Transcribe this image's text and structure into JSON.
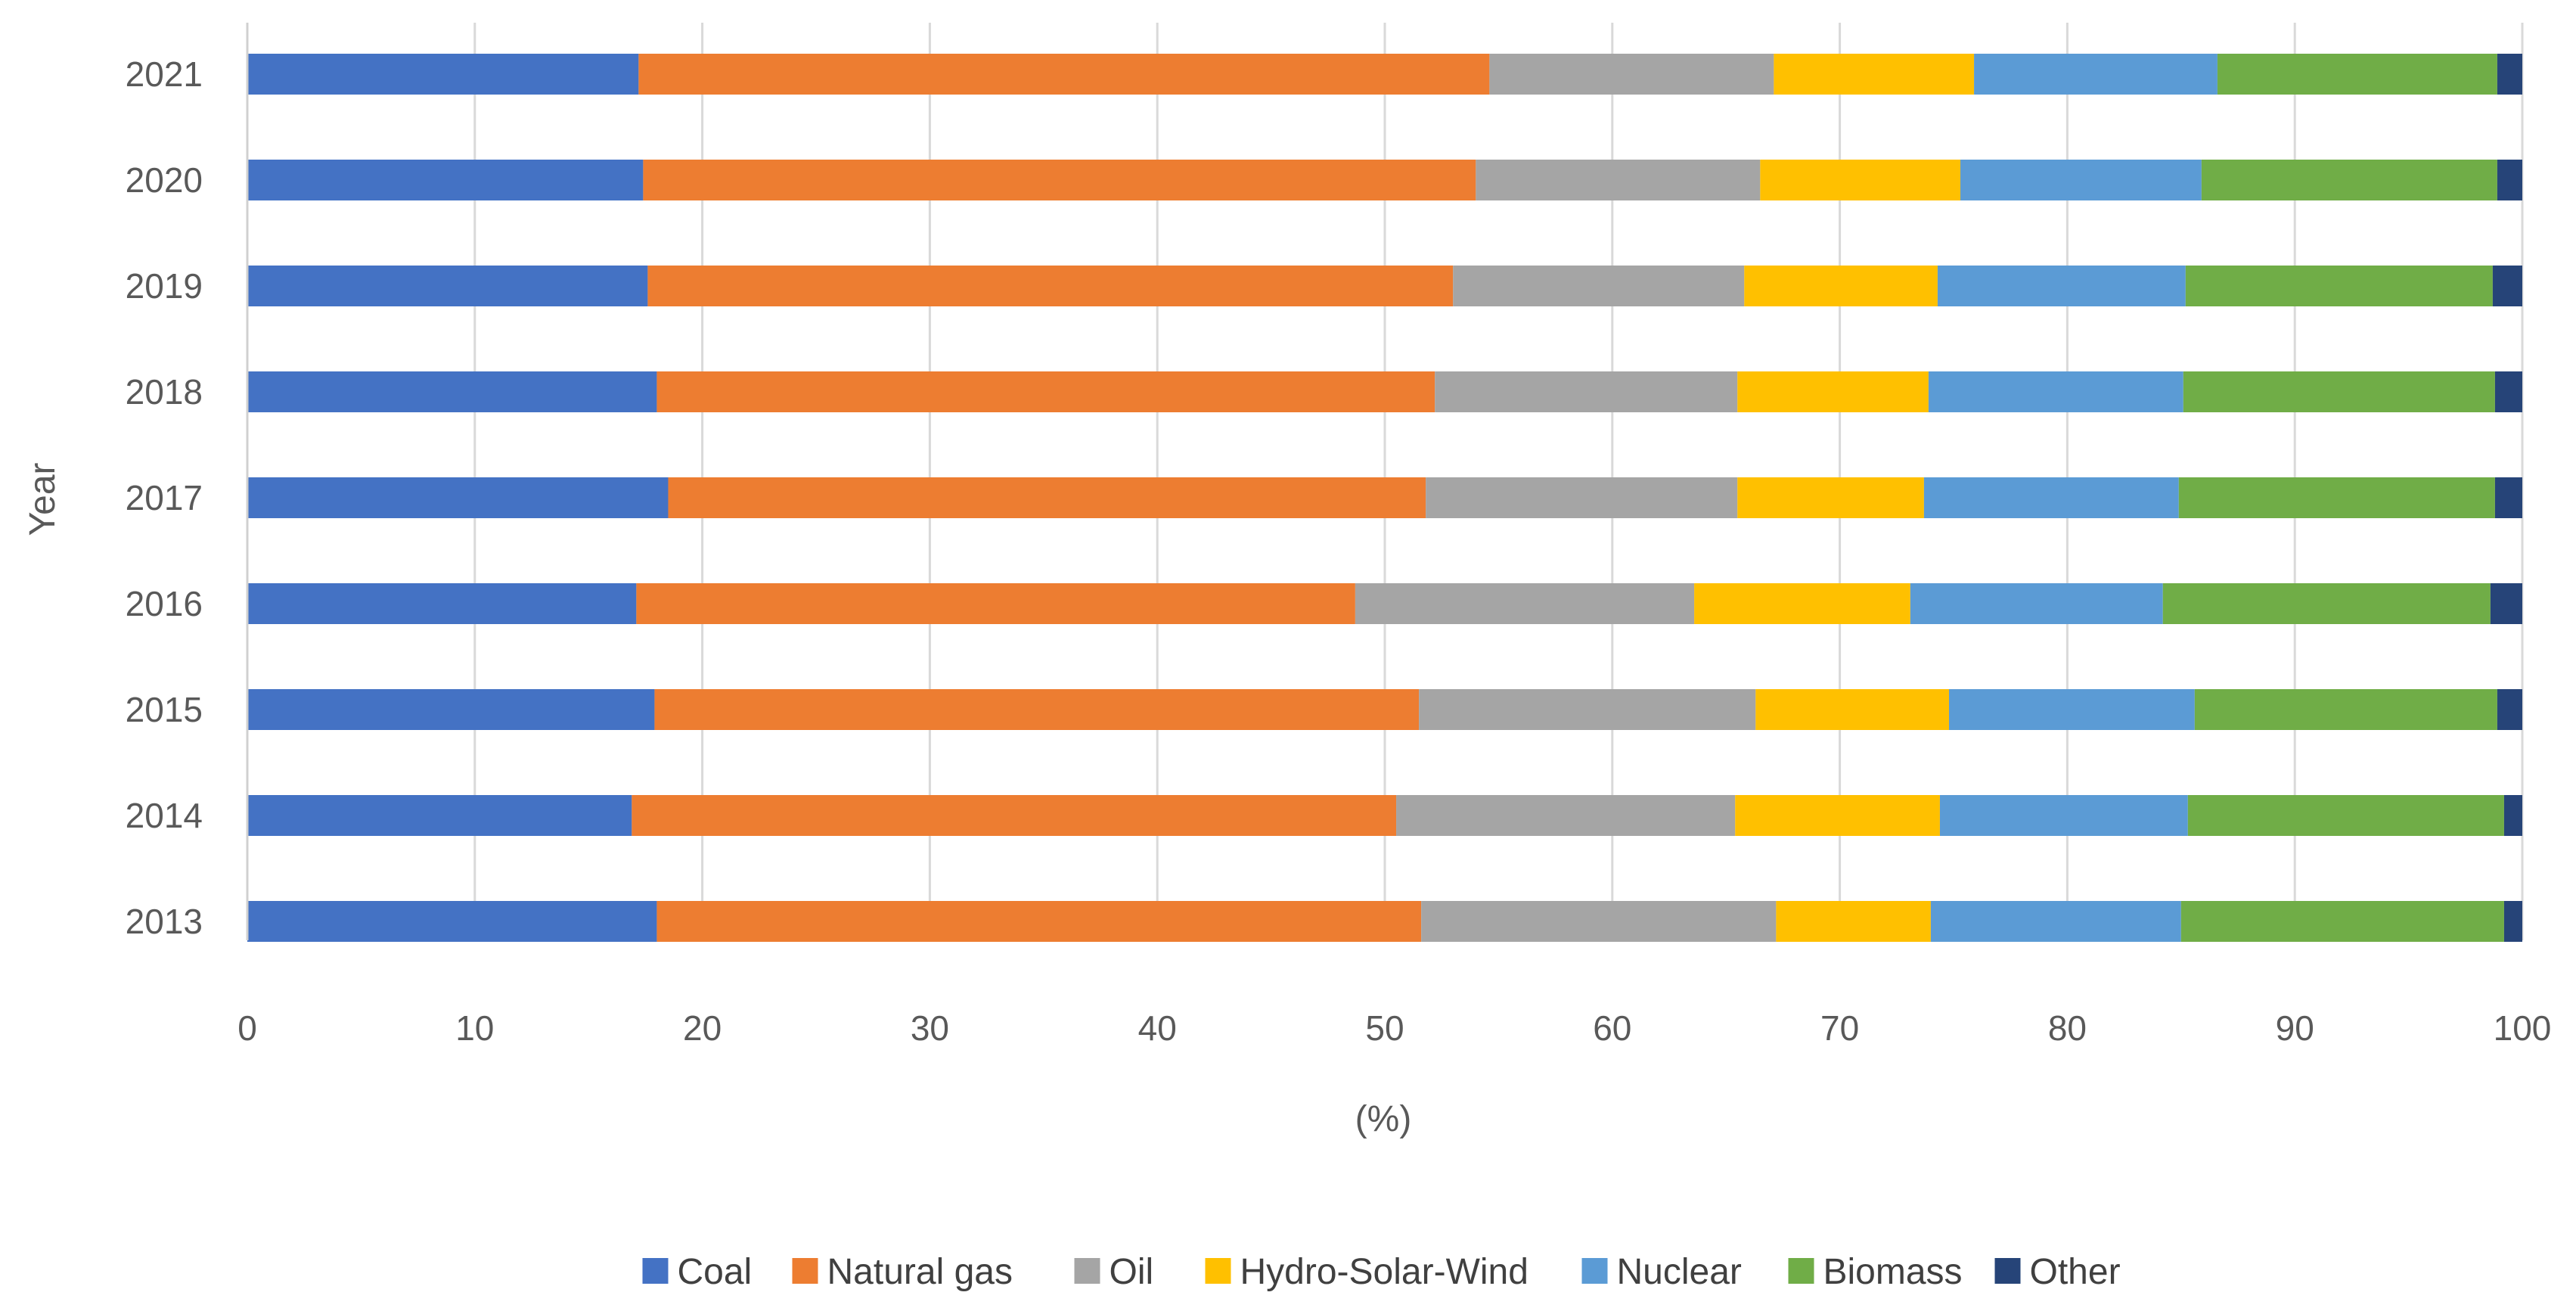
{
  "chart_data": {
    "type": "bar",
    "orientation": "horizontal",
    "stacked": true,
    "title": "",
    "xlabel": "(%)",
    "ylabel": "Year",
    "xlim": [
      0,
      100
    ],
    "x_ticks": [
      0,
      10,
      20,
      30,
      40,
      50,
      60,
      70,
      80,
      90,
      100
    ],
    "grid": "vertical",
    "legend": "bottom",
    "categories": [
      "2021",
      "2020",
      "2019",
      "2018",
      "2017",
      "2016",
      "2015",
      "2014",
      "2013"
    ],
    "series": [
      {
        "name": "Coal",
        "color": "#4472C4",
        "values": [
          17.2,
          17.4,
          17.6,
          18.0,
          18.5,
          17.1,
          17.9,
          16.9,
          18.0
        ]
      },
      {
        "name": "Natural gas",
        "color": "#ED7D31",
        "values": [
          37.4,
          36.6,
          35.4,
          34.2,
          33.3,
          31.6,
          33.6,
          33.6,
          33.6
        ]
      },
      {
        "name": "Oil",
        "color": "#A5A5A5",
        "values": [
          12.5,
          12.5,
          12.8,
          13.3,
          13.7,
          14.9,
          14.8,
          14.9,
          15.6
        ]
      },
      {
        "name": "Hydro-Solar-Wind",
        "color": "#FFC000",
        "values": [
          8.8,
          8.8,
          8.5,
          8.4,
          8.2,
          9.5,
          8.5,
          9.0,
          6.8
        ]
      },
      {
        "name": "Nuclear",
        "color": "#5B9BD5",
        "values": [
          10.7,
          10.6,
          10.9,
          11.2,
          11.2,
          11.1,
          10.8,
          10.9,
          11.0
        ]
      },
      {
        "name": "Biomass",
        "color": "#70AD47",
        "values": [
          12.3,
          13.0,
          13.5,
          13.7,
          13.9,
          14.4,
          13.3,
          13.9,
          14.2
        ]
      },
      {
        "name": "Other",
        "color": "#264478",
        "values": [
          1.1,
          1.1,
          1.3,
          1.2,
          1.2,
          1.4,
          1.1,
          0.8,
          0.8
        ]
      }
    ]
  }
}
